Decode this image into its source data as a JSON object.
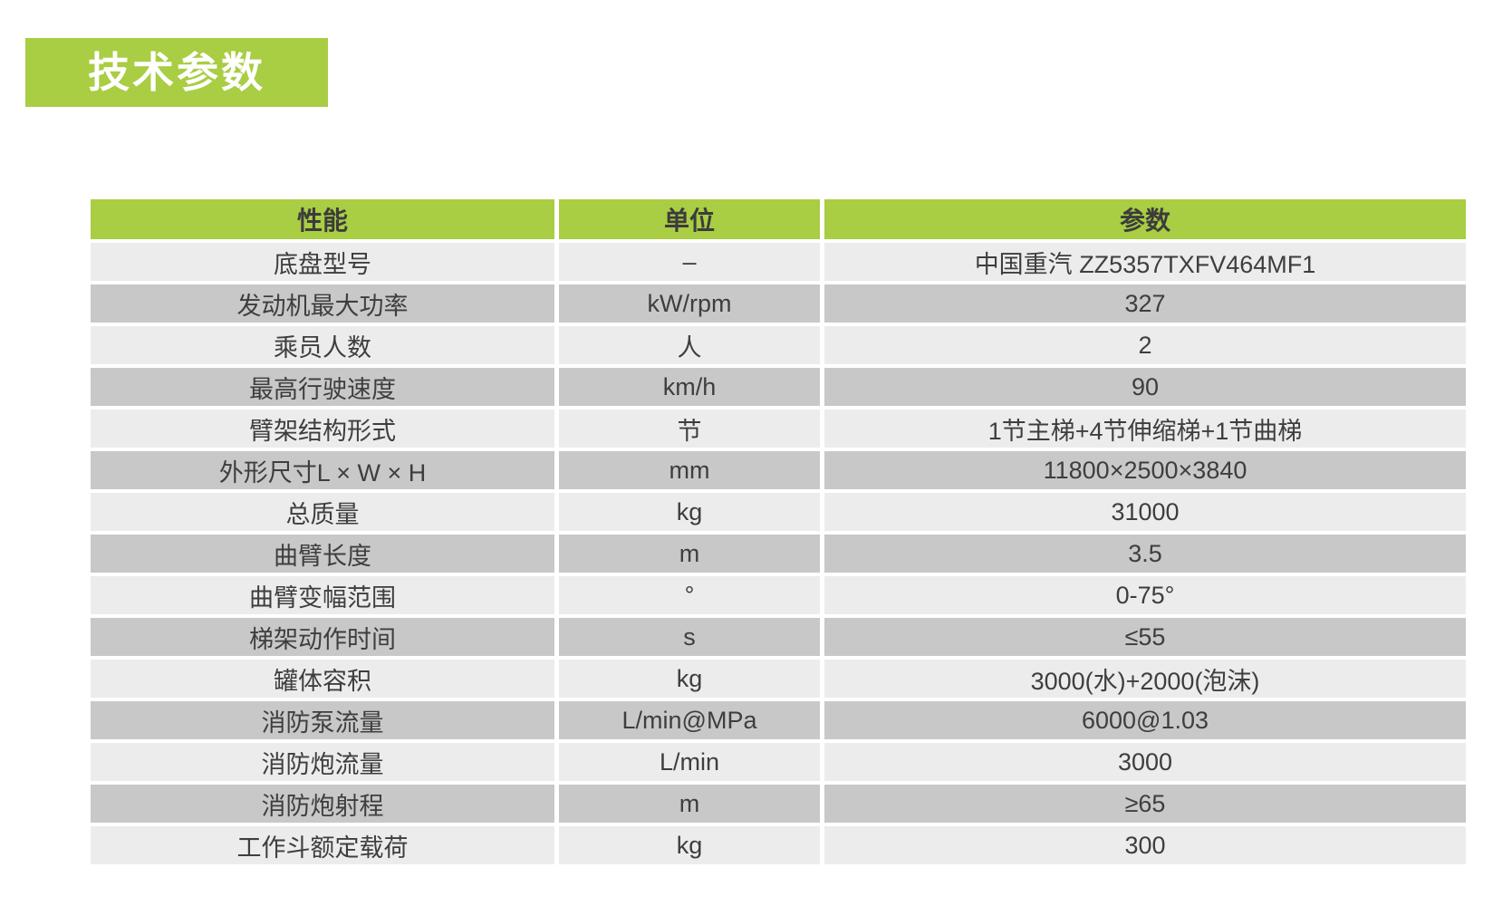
{
  "title": {
    "label": "技术参数"
  },
  "colors": {
    "accent_green": "#a9cd43",
    "row_light": "#ececec",
    "row_dark": "#c8c8c8",
    "text": "#3e3e3e",
    "title_text": "#ffffff"
  },
  "table": {
    "headers": [
      "性能",
      "单位",
      "参数"
    ],
    "rows": [
      {
        "property": "底盘型号",
        "unit": "–",
        "value": "中国重汽 ZZ5357TXFV464MF1"
      },
      {
        "property": "发动机最大功率",
        "unit": "kW/rpm",
        "value": "327"
      },
      {
        "property": "乘员人数",
        "unit": "人",
        "value": "2"
      },
      {
        "property": "最高行驶速度",
        "unit": "km/h",
        "value": "90"
      },
      {
        "property": "臂架结构形式",
        "unit": "节",
        "value": "1节主梯+4节伸缩梯+1节曲梯"
      },
      {
        "property": "外形尺寸L × W × H",
        "unit": "mm",
        "value": "11800×2500×3840"
      },
      {
        "property": "总质量",
        "unit": "kg",
        "value": "31000"
      },
      {
        "property": "曲臂长度",
        "unit": "m",
        "value": "3.5"
      },
      {
        "property": "曲臂变幅范围",
        "unit": "°",
        "value": "0-75°"
      },
      {
        "property": "梯架动作时间",
        "unit": "s",
        "value": "≤55"
      },
      {
        "property": "罐体容积",
        "unit": "kg",
        "value": "3000(水)+2000(泡沫)"
      },
      {
        "property": "消防泵流量",
        "unit": "L/min@MPa",
        "value": "6000@1.03"
      },
      {
        "property": "消防炮流量",
        "unit": "L/min",
        "value": "3000"
      },
      {
        "property": "消防炮射程",
        "unit": "m",
        "value": "≥65"
      },
      {
        "property": "工作斗额定载荷",
        "unit": "kg",
        "value": "300"
      }
    ]
  }
}
